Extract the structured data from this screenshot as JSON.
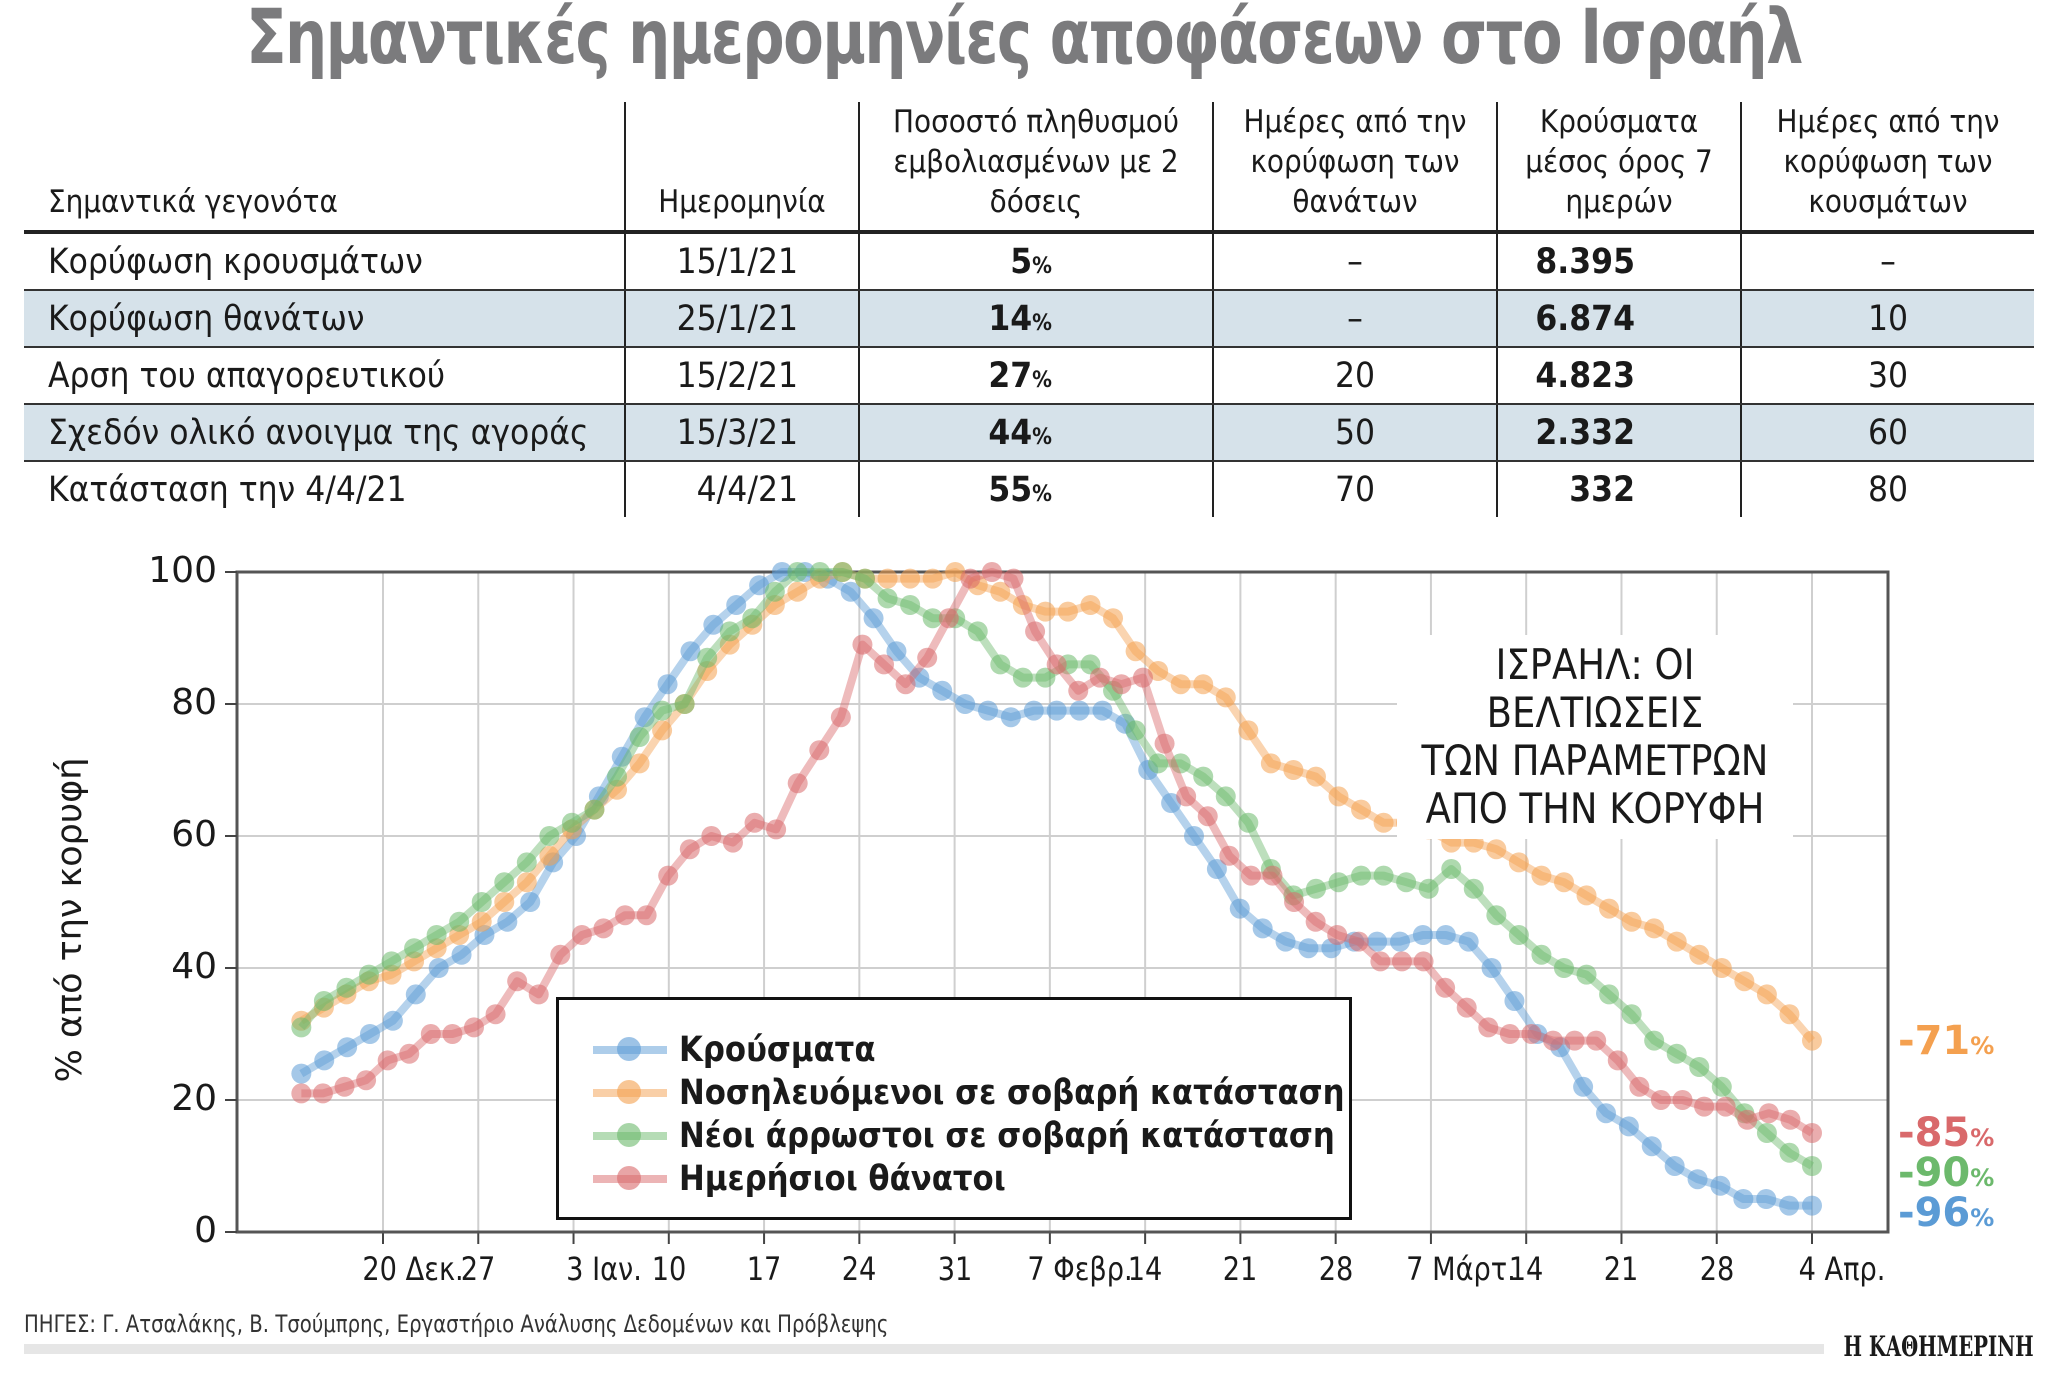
{
  "header": {
    "title": "Σημαντικές ημερομηνίες αποφάσεων στο Ισραήλ"
  },
  "table": {
    "headers": [
      "Σημαντικά γεγονότα",
      "Ημερομηνία",
      "Ποσοστό πληθυσμού εμβολιασμένων με 2 δόσεις",
      "Ημέρες από την κορύφωση των θανάτων",
      "Κρούσματα μέσος όρος 7 ημερών",
      "Ημέρες από την κορύφωση των κουσμάτων"
    ],
    "rows": [
      {
        "event": "Κορύφωση κρουσμάτων",
        "date": "15/1/21",
        "vacc": "5",
        "days_deaths": "–",
        "cases": "8.395",
        "days_cases": "–"
      },
      {
        "event": "Κορύφωση θανάτων",
        "date": "25/1/21",
        "vacc": "14",
        "days_deaths": "–",
        "cases": "6.874",
        "days_cases": "10"
      },
      {
        "event": "Αρση του απαγορευτικού",
        "date": "15/2/21",
        "vacc": "27",
        "days_deaths": "20",
        "cases": "4.823",
        "days_cases": "30"
      },
      {
        "event": "Σχεδόν ολικό ανοιγμα της αγοράς",
        "date": "15/3/21",
        "vacc": "44",
        "days_deaths": "50",
        "cases": "2.332",
        "days_cases": "60"
      },
      {
        "event": "Κατάσταση την 4/4/21",
        "date": "4/4/21",
        "vacc": "55",
        "days_deaths": "70",
        "cases": "332",
        "days_cases": "80"
      }
    ],
    "pct_sign": "%"
  },
  "chart_data": {
    "type": "line",
    "title": "ΙΣΡΑΗΛ: ΟΙ ΒΕΛΤΙΩΣΕΙΣ ΤΩΝ ΠΑΡΑΜΕΤΡΩΝ ΑΠΟ ΤΗΝ ΚΟΡΥΦΗ",
    "title_lines": [
      "ΙΣΡΑΗΛ: ΟΙ ΒΕΛΤΙΩΣΕΙΣ",
      "ΤΩΝ ΠΑΡΑΜΕΤΡΩΝ",
      "ΑΠΟ ΤΗΝ ΚΟΡΥΦΗ"
    ],
    "ylabel": "% από την κορυφή",
    "xlabel": "",
    "ylim": [
      0,
      100
    ],
    "yticks": [
      0,
      20,
      40,
      60,
      80,
      100
    ],
    "xticks": [
      "20 Δεκ.",
      "27",
      "3 Ιαν.",
      "10",
      "17",
      "24",
      "31",
      "7 Φεβρ.",
      "14",
      "21",
      "28",
      "7 Μάρτ.",
      "14",
      "21",
      "28",
      "4 Απρ."
    ],
    "grid": true,
    "legend_position": "lower center",
    "x_start_day_offset": -6,
    "x_step_days": 2,
    "series": [
      {
        "name": "Κρούσματα",
        "color": "#5b9bd5",
        "values": [
          24,
          26,
          28,
          30,
          32,
          36,
          40,
          42,
          45,
          47,
          50,
          56,
          60,
          66,
          72,
          78,
          83,
          88,
          92,
          95,
          98,
          100,
          100,
          99,
          97,
          93,
          88,
          84,
          82,
          80,
          79,
          78,
          79,
          79,
          79,
          79,
          77,
          70,
          65,
          60,
          55,
          49,
          46,
          44,
          43,
          43,
          44,
          44,
          44,
          45,
          45,
          44,
          40,
          35,
          30,
          28,
          22,
          18,
          16,
          13,
          10,
          8,
          7,
          5,
          5,
          4,
          4
        ]
      },
      {
        "name": "Νοσηλευόμενοι σε σοβαρή κατάσταση",
        "color": "#f4a04f",
        "values": [
          32,
          34,
          36,
          38,
          39,
          41,
          43,
          45,
          47,
          50,
          53,
          57,
          61,
          64,
          67,
          71,
          76,
          80,
          85,
          89,
          92,
          95,
          97,
          99,
          100,
          99,
          99,
          99,
          99,
          100,
          98,
          97,
          95,
          94,
          94,
          95,
          93,
          88,
          85,
          83,
          83,
          81,
          76,
          71,
          70,
          69,
          66,
          64,
          62,
          62,
          61,
          59,
          59,
          58,
          56,
          54,
          53,
          51,
          49,
          47,
          46,
          44,
          42,
          40,
          38,
          36,
          33,
          29
        ]
      },
      {
        "name": "Νέοι άρρωστοι σε σοβαρή κατάσταση",
        "color": "#6cb96c",
        "values": [
          31,
          35,
          37,
          39,
          41,
          43,
          45,
          47,
          50,
          53,
          56,
          60,
          62,
          64,
          69,
          75,
          79,
          80,
          87,
          91,
          93,
          97,
          100,
          100,
          100,
          99,
          96,
          95,
          93,
          93,
          91,
          86,
          84,
          84,
          86,
          86,
          82,
          76,
          71,
          71,
          69,
          66,
          62,
          55,
          51,
          52,
          53,
          54,
          54,
          53,
          52,
          55,
          52,
          48,
          45,
          42,
          40,
          39,
          36,
          33,
          29,
          27,
          25,
          22,
          18,
          15,
          12,
          10
        ]
      },
      {
        "name": "Ημερήσιοι θάνατοι",
        "color": "#d9696b",
        "values": [
          21,
          21,
          22,
          23,
          26,
          27,
          30,
          30,
          31,
          33,
          38,
          36,
          42,
          45,
          46,
          48,
          48,
          54,
          58,
          60,
          59,
          62,
          61,
          68,
          73,
          78,
          89,
          86,
          83,
          87,
          93,
          99,
          100,
          99,
          91,
          86,
          82,
          84,
          83,
          84,
          74,
          66,
          63,
          57,
          54,
          54,
          50,
          47,
          45,
          44,
          41,
          41,
          41,
          37,
          34,
          31,
          30,
          30,
          29,
          29,
          29,
          26,
          22,
          20,
          20,
          19,
          19,
          17,
          18,
          17,
          15
        ]
      }
    ],
    "end_labels": [
      {
        "series": "Νοσηλευόμενοι σε σοβαρή κατάσταση",
        "text": "-71",
        "color": "#f4a04f"
      },
      {
        "series": "Ημερήσιοι θάνατοι",
        "text": "-85",
        "color": "#d9696b"
      },
      {
        "series": "Νέοι άρρωστοι σε σοβαρή κατάσταση",
        "text": "-90",
        "color": "#6cb96c"
      },
      {
        "series": "Κρούσματα",
        "text": "-96",
        "color": "#5b9bd5"
      }
    ]
  },
  "footer": {
    "source": "ΠΗΓΕΣ: Γ. Ατσαλάκης, Β. Τσούμπρης, Εργαστήριο Ανάλυσης Δεδομένων και Πρόβλεψης",
    "logo": "Η ΚΑΘΗΜΕΡΙΝΗ"
  }
}
